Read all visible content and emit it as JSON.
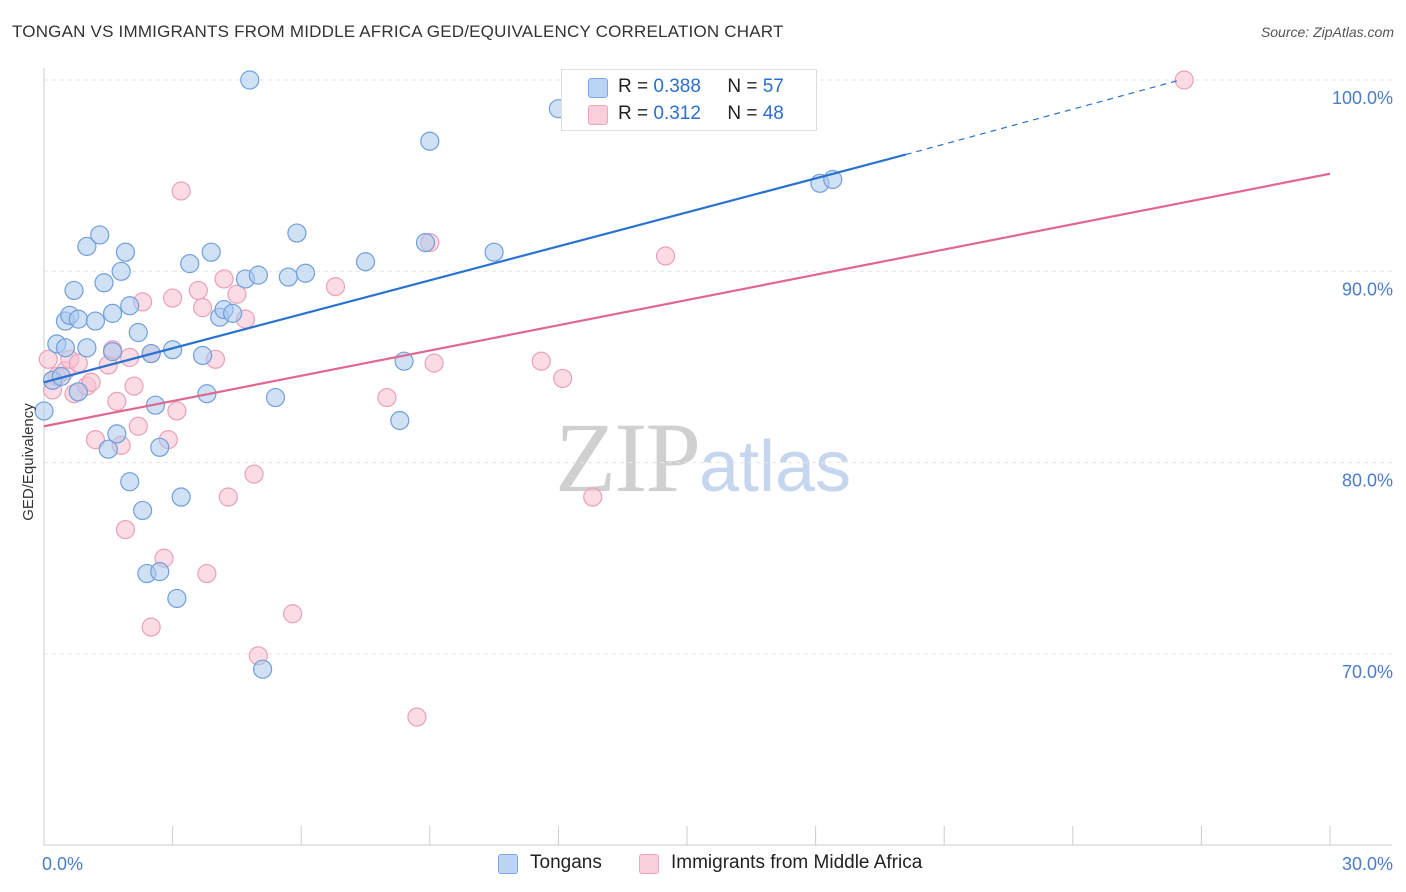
{
  "header": {
    "title": "TONGAN VS IMMIGRANTS FROM MIDDLE AFRICA GED/EQUIVALENCY CORRELATION CHART",
    "source": "Source: ZipAtlas.com"
  },
  "watermark": {
    "zip": "ZIP",
    "atlas": "atlas"
  },
  "legend_top": [
    {
      "r_label": "R =",
      "r_value": "0.388",
      "n_label": "N =",
      "n_value": "57"
    },
    {
      "r_label": "R =",
      "r_value": "0.312",
      "n_label": "N =",
      "n_value": "48"
    }
  ],
  "colors": {
    "blue_fill": "#aac8ef",
    "blue_stroke": "#6f9fdc",
    "blue_line": "#2a72d0",
    "pink_fill": "#f7c0d0",
    "pink_stroke": "#e9a0b8",
    "pink_line": "#e06890",
    "tick_text": "#4a7cc7",
    "grid": "#e6e6e6"
  },
  "chart_data": {
    "type": "scatter",
    "title": "TONGAN VS IMMIGRANTS FROM MIDDLE AFRICA GED/EQUIVALENCY CORRELATION CHART",
    "xlabel": "",
    "ylabel": "GED/Equivalency",
    "xlim": [
      0,
      30
    ],
    "ylim": [
      60,
      102
    ],
    "x_tick_labels": [
      {
        "value": 0,
        "label": "0.0%"
      },
      {
        "value": 30,
        "label": "30.0%"
      }
    ],
    "y_tick_labels": [
      {
        "value": 100,
        "label": "100.0%"
      },
      {
        "value": 90,
        "label": "90.0%"
      },
      {
        "value": 80,
        "label": "80.0%"
      },
      {
        "value": 70,
        "label": "70.0%"
      }
    ],
    "y_grid": [
      70,
      80,
      90,
      100
    ],
    "legend_placement": "bottom",
    "series": [
      {
        "name": "Tongans",
        "r": 0.388,
        "n": 57,
        "trend": {
          "x": [
            0,
            20.1
          ],
          "y": [
            84.2,
            96.1
          ],
          "dashed_to": [
            26.5,
            100
          ]
        },
        "points": [
          [
            0.0,
            82.7
          ],
          [
            0.2,
            84.3
          ],
          [
            0.3,
            86.2
          ],
          [
            0.4,
            84.5
          ],
          [
            0.5,
            86.0
          ],
          [
            0.5,
            87.4
          ],
          [
            0.6,
            87.7
          ],
          [
            0.7,
            89.0
          ],
          [
            0.8,
            87.5
          ],
          [
            0.8,
            83.7
          ],
          [
            1.0,
            91.3
          ],
          [
            1.0,
            86.0
          ],
          [
            1.2,
            87.4
          ],
          [
            1.3,
            91.9
          ],
          [
            1.4,
            89.4
          ],
          [
            1.5,
            80.7
          ],
          [
            1.6,
            85.8
          ],
          [
            1.6,
            87.8
          ],
          [
            1.7,
            81.5
          ],
          [
            1.8,
            90.0
          ],
          [
            1.9,
            91.0
          ],
          [
            2.0,
            88.2
          ],
          [
            2.0,
            79.0
          ],
          [
            2.2,
            86.8
          ],
          [
            2.3,
            77.5
          ],
          [
            2.4,
            74.2
          ],
          [
            2.5,
            85.7
          ],
          [
            2.6,
            83.0
          ],
          [
            2.7,
            74.3
          ],
          [
            2.7,
            80.8
          ],
          [
            3.0,
            85.9
          ],
          [
            3.1,
            72.9
          ],
          [
            3.2,
            78.2
          ],
          [
            3.4,
            90.4
          ],
          [
            3.7,
            85.6
          ],
          [
            3.8,
            83.6
          ],
          [
            3.9,
            91.0
          ],
          [
            4.1,
            87.6
          ],
          [
            4.2,
            88.0
          ],
          [
            4.4,
            87.8
          ],
          [
            4.7,
            89.6
          ],
          [
            4.8,
            100.0
          ],
          [
            5.0,
            89.8
          ],
          [
            5.1,
            69.2
          ],
          [
            5.4,
            83.4
          ],
          [
            5.7,
            89.7
          ],
          [
            5.9,
            92.0
          ],
          [
            6.1,
            89.9
          ],
          [
            7.5,
            90.5
          ],
          [
            8.3,
            82.2
          ],
          [
            8.4,
            85.3
          ],
          [
            8.9,
            91.5
          ],
          [
            9.0,
            96.8
          ],
          [
            10.5,
            91.0
          ],
          [
            12.0,
            98.5
          ],
          [
            18.1,
            94.6
          ],
          [
            18.4,
            94.8
          ]
        ]
      },
      {
        "name": "Immigrants from Middle Africa",
        "r": 0.312,
        "n": 48,
        "trend": {
          "x": [
            0,
            30
          ],
          "y": [
            81.9,
            95.1
          ]
        },
        "points": [
          [
            0.1,
            85.4
          ],
          [
            0.2,
            83.8
          ],
          [
            0.3,
            84.5
          ],
          [
            0.5,
            84.8
          ],
          [
            0.6,
            85.4
          ],
          [
            0.7,
            83.6
          ],
          [
            0.8,
            85.2
          ],
          [
            1.0,
            84.0
          ],
          [
            1.1,
            84.2
          ],
          [
            1.2,
            81.2
          ],
          [
            1.5,
            85.1
          ],
          [
            1.6,
            85.9
          ],
          [
            1.7,
            83.2
          ],
          [
            1.8,
            80.9
          ],
          [
            1.9,
            76.5
          ],
          [
            2.0,
            85.5
          ],
          [
            2.1,
            84.0
          ],
          [
            2.2,
            81.9
          ],
          [
            2.3,
            88.4
          ],
          [
            2.5,
            71.4
          ],
          [
            2.5,
            85.7
          ],
          [
            2.8,
            75.0
          ],
          [
            2.9,
            81.2
          ],
          [
            3.0,
            88.6
          ],
          [
            3.1,
            82.7
          ],
          [
            3.2,
            94.2
          ],
          [
            3.6,
            89.0
          ],
          [
            3.7,
            88.1
          ],
          [
            3.8,
            74.2
          ],
          [
            4.0,
            85.4
          ],
          [
            4.2,
            89.6
          ],
          [
            4.3,
            78.2
          ],
          [
            4.5,
            88.8
          ],
          [
            4.7,
            87.5
          ],
          [
            4.9,
            79.4
          ],
          [
            5.0,
            69.9
          ],
          [
            5.8,
            72.1
          ],
          [
            6.8,
            89.2
          ],
          [
            8.0,
            83.4
          ],
          [
            8.7,
            66.7
          ],
          [
            9.0,
            91.5
          ],
          [
            9.1,
            85.2
          ],
          [
            11.6,
            85.3
          ],
          [
            12.1,
            84.4
          ],
          [
            12.6,
            100.0
          ],
          [
            12.8,
            78.2
          ],
          [
            14.5,
            90.8
          ],
          [
            26.6,
            100.0
          ]
        ]
      }
    ]
  },
  "legend_bottom": [
    "Tongans",
    "Immigrants from Middle Africa"
  ]
}
